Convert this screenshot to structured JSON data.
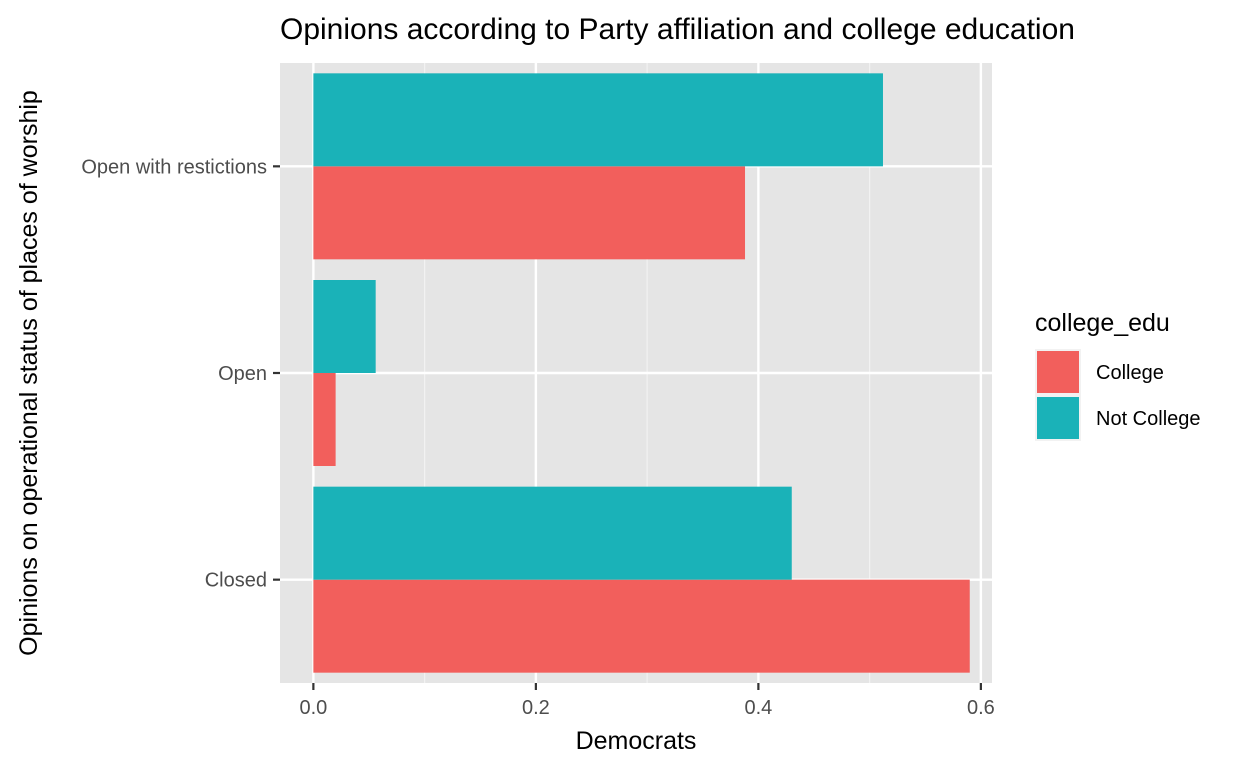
{
  "chart_data": {
    "type": "bar",
    "orientation": "horizontal",
    "title": "Opinions according to Party affiliation and college education",
    "xlabel": "Democrats",
    "ylabel": "Opinions on operational status of places of worship",
    "categories": [
      "Closed",
      "Open",
      "Open with restictions"
    ],
    "xlim": [
      -0.03,
      0.61
    ],
    "xticks": [
      "0.0",
      "0.2",
      "0.4",
      "0.6"
    ],
    "xtick_values": [
      0,
      0.2,
      0.4,
      0.6
    ],
    "grid": true,
    "legend": {
      "title": "college_edu",
      "placement": "right"
    },
    "series": [
      {
        "name": "College",
        "color": "#F8766D",
        "fill": "#F25F5C",
        "values": [
          0.59,
          0.02,
          0.388
        ]
      },
      {
        "name": "Not College",
        "color": "#00BFC4",
        "fill": "#1AB2B8",
        "values": [
          0.43,
          0.056,
          0.512
        ]
      }
    ]
  }
}
